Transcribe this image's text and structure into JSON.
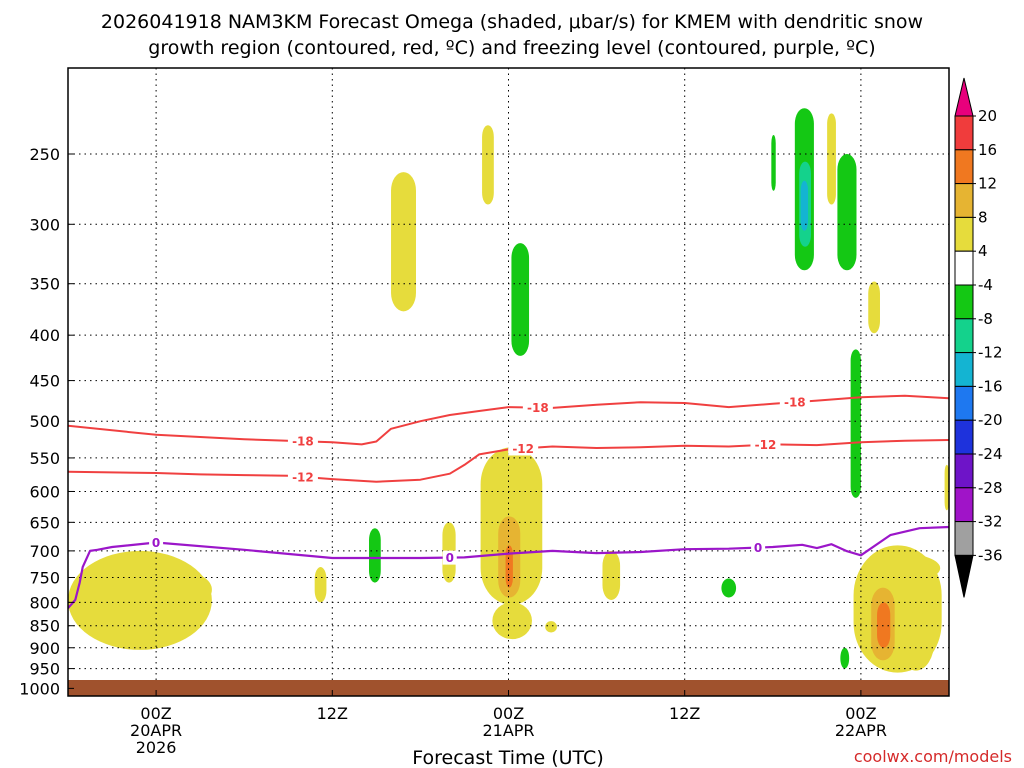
{
  "chart_data": {
    "type": "time-height cross section",
    "title_line1": "2026041918 NAM3KM Forecast Omega (shaded, μbar/s) for KMEM with dendritic snow",
    "title_line2": "growth region (contoured, red, ºC) and freezing level (contoured, purple, ºC)",
    "xlabel": "Forecast Time (UTC)",
    "credit": "coolwx.com/models",
    "x_range_hours": [
      -6,
      54
    ],
    "y_levels_hpa": [
      250,
      300,
      350,
      400,
      450,
      500,
      550,
      600,
      650,
      700,
      750,
      800,
      850,
      900,
      950,
      1000
    ],
    "y_range_hpa": [
      200,
      1020
    ],
    "x_ticks": [
      {
        "hour": 0,
        "lines": [
          "00Z",
          "20APR",
          "2026"
        ]
      },
      {
        "hour": 12,
        "lines": [
          "12Z"
        ]
      },
      {
        "hour": 24,
        "lines": [
          "00Z",
          "21APR"
        ]
      },
      {
        "hour": 36,
        "lines": [
          "12Z"
        ]
      },
      {
        "hour": 48,
        "lines": [
          "00Z",
          "22APR"
        ]
      }
    ],
    "colorbar": {
      "labels": [
        "20",
        "16",
        "12",
        "8",
        "4",
        "-4",
        "-8",
        "-12",
        "-16",
        "-20",
        "-24",
        "-28",
        "-32",
        "-36"
      ],
      "colors": [
        "#e8007c",
        "#f03c3c",
        "#f07820",
        "#e6b432",
        "#e6dc3c",
        "#ffffff",
        "#14c814",
        "#14d28c",
        "#14b4d2",
        "#1e78f0",
        "#1e32dc",
        "#6e14c8",
        "#a014c8",
        "#a0a0a0",
        "#000000"
      ]
    },
    "series": [
      {
        "name": "-18",
        "color": "#f04040",
        "hours": [
          -6,
          0,
          6,
          12,
          14,
          15,
          16,
          18,
          20,
          22,
          24,
          27,
          30,
          33,
          36,
          39,
          42,
          45,
          48,
          51,
          54
        ],
        "hpa": [
          506,
          518,
          524,
          528,
          531,
          527,
          510,
          500,
          492,
          487,
          482,
          483,
          479,
          476,
          477,
          482,
          478,
          474,
          470,
          468,
          471
        ],
        "labels": [
          {
            "hour": 10,
            "text": "-18"
          },
          {
            "hour": 26,
            "text": "-18"
          },
          {
            "hour": 43.5,
            "text": "-18"
          }
        ]
      },
      {
        "name": "-12",
        "color": "#f04040",
        "hours": [
          -6,
          0,
          3,
          6,
          9,
          12,
          15,
          18,
          20,
          21,
          22,
          24,
          27,
          30,
          33,
          36,
          39,
          42,
          45,
          48,
          51,
          54
        ],
        "hpa": [
          570,
          572,
          574,
          575,
          576,
          581,
          585,
          582,
          573,
          560,
          545,
          538,
          534,
          536,
          535,
          533,
          534,
          531,
          532,
          528,
          526,
          525
        ],
        "labels": [
          {
            "hour": 10,
            "text": "-12"
          },
          {
            "hour": 25,
            "text": "-12"
          },
          {
            "hour": 41.5,
            "text": "-12"
          }
        ]
      },
      {
        "name": "0",
        "color": "#9b16c9",
        "hours": [
          -6,
          -5.5,
          -5.2,
          -5,
          -4.5,
          -4,
          -3,
          0,
          6,
          12,
          18,
          21,
          24,
          27,
          30,
          33,
          36,
          39,
          42,
          44,
          45,
          46,
          47,
          48,
          50,
          52,
          54
        ],
        "hpa": [
          812,
          795,
          760,
          730,
          700,
          698,
          693,
          685,
          698,
          713,
          713,
          712,
          705,
          700,
          704,
          702,
          697,
          696,
          693,
          689,
          695,
          688,
          700,
          708,
          672,
          660,
          658
        ],
        "labels": [
          {
            "hour": 20,
            "text": "0"
          },
          {
            "hour": 41,
            "text": "0"
          },
          {
            "hour": 0,
            "text": "0"
          }
        ]
      }
    ],
    "omega_regions": [
      {
        "color": "#e6dc3c",
        "h0": 16.0,
        "h1": 17.7,
        "p0": 262,
        "p1": 376
      },
      {
        "color": "#e6dc3c",
        "h0": 22.2,
        "h1": 23.0,
        "p0": 232,
        "p1": 285
      },
      {
        "color": "#14c814",
        "h0": 24.2,
        "h1": 25.4,
        "p0": 315,
        "p1": 422
      },
      {
        "color": "#14c814",
        "h0": 43.5,
        "h1": 44.8,
        "p0": 222,
        "p1": 338
      },
      {
        "color": "#14d28c",
        "h0": 43.8,
        "h1": 44.6,
        "p0": 255,
        "p1": 318
      },
      {
        "color": "#14b4d2",
        "h0": 43.9,
        "h1": 44.4,
        "p0": 268,
        "p1": 305
      },
      {
        "color": "#14c814",
        "h0": 41.9,
        "h1": 42.2,
        "p0": 238,
        "p1": 275
      },
      {
        "color": "#e6dc3c",
        "h0": 45.7,
        "h1": 46.3,
        "p0": 225,
        "p1": 285
      },
      {
        "color": "#14c814",
        "h0": 46.4,
        "h1": 47.7,
        "p0": 250,
        "p1": 338
      },
      {
        "color": "#e6dc3c",
        "h0": 48.5,
        "h1": 49.3,
        "p0": 348,
        "p1": 398
      },
      {
        "color": "#14c814",
        "h0": 47.3,
        "h1": 48.0,
        "p0": 415,
        "p1": 610
      },
      {
        "color": "#e6dc3c",
        "h0": 53.7,
        "h1": 54.0,
        "p0": 560,
        "p1": 630
      },
      {
        "color": "#e6dc3c",
        "h0": 22.1,
        "h1": 26.3,
        "p0": 535,
        "p1": 805
      },
      {
        "color": "#e6dc3c",
        "h0": 22.9,
        "h1": 25.6,
        "p0": 800,
        "p1": 880
      },
      {
        "color": "#e6b432",
        "h0": 23.3,
        "h1": 24.8,
        "p0": 640,
        "p1": 790
      },
      {
        "color": "#f07820",
        "h0": 23.8,
        "h1": 24.3,
        "p0": 690,
        "p1": 770
      },
      {
        "color": "#e6dc3c",
        "h0": 26.5,
        "h1": 27.3,
        "p0": 840,
        "p1": 865
      },
      {
        "color": "#14c814",
        "h0": 14.5,
        "h1": 15.3,
        "p0": 660,
        "p1": 760
      },
      {
        "color": "#e6dc3c",
        "h0": 10.8,
        "h1": 11.6,
        "p0": 730,
        "p1": 800
      },
      {
        "color": "#e6dc3c",
        "h0": 19.5,
        "h1": 20.4,
        "p0": 650,
        "p1": 760
      },
      {
        "color": "#e6dc3c",
        "h0": 30.4,
        "h1": 31.6,
        "p0": 700,
        "p1": 795
      },
      {
        "color": "#14c814",
        "h0": 38.5,
        "h1": 39.5,
        "p0": 752,
        "p1": 790
      },
      {
        "color": "#e6dc3c",
        "h0": -6.0,
        "h1": 3.8,
        "p0": 700,
        "p1": 905
      },
      {
        "color": "#e6dc3c",
        "h0": 47.5,
        "h1": 53.5,
        "p0": 690,
        "p1": 960
      },
      {
        "color": "#e6b432",
        "h0": 48.7,
        "h1": 50.3,
        "p0": 770,
        "p1": 930
      },
      {
        "color": "#f07820",
        "h0": 49.1,
        "h1": 50.0,
        "p0": 800,
        "p1": 900
      },
      {
        "color": "#14c814",
        "h0": 46.6,
        "h1": 47.2,
        "p0": 900,
        "p1": 950
      }
    ],
    "ground_color": "#a0522d"
  }
}
